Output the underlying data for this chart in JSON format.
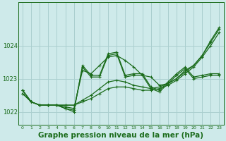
{
  "background_color": "#ceeaea",
  "grid_color": "#aacfcf",
  "line_color": "#1a6b1a",
  "xlabel": "Graphe pression niveau de la mer (hPa)",
  "xlabel_fontsize": 7.5,
  "xlim": [
    -0.5,
    23.5
  ],
  "ylim": [
    1021.6,
    1025.3
  ],
  "yticks": [
    1022,
    1023,
    1024
  ],
  "xticks": [
    0,
    1,
    2,
    3,
    4,
    5,
    6,
    7,
    8,
    9,
    10,
    11,
    12,
    13,
    14,
    15,
    16,
    17,
    18,
    19,
    20,
    21,
    22,
    23
  ],
  "series": [
    [
      1022.55,
      1022.3,
      1022.2,
      1022.2,
      1022.2,
      1022.2,
      1022.2,
      1022.3,
      1022.4,
      1022.55,
      1022.7,
      1022.75,
      1022.75,
      1022.7,
      1022.65,
      1022.65,
      1022.7,
      1022.8,
      1022.95,
      1023.15,
      1023.35,
      1023.65,
      1024.0,
      1024.4
    ],
    [
      1022.55,
      1022.3,
      1022.2,
      1022.2,
      1022.2,
      1022.2,
      1022.2,
      1022.35,
      1022.5,
      1022.7,
      1022.9,
      1022.95,
      1022.9,
      1022.8,
      1022.75,
      1022.7,
      1022.75,
      1022.85,
      1023.0,
      1023.2,
      1023.4,
      1023.7,
      1024.1,
      1024.5
    ],
    [
      1022.65,
      1022.3,
      1022.2,
      1022.2,
      1022.2,
      1022.15,
      1022.1,
      1023.25,
      1023.15,
      1023.4,
      1023.65,
      1023.7,
      1023.55,
      1023.35,
      1023.1,
      1023.05,
      1022.8,
      1022.85,
      1023.0,
      1023.25,
      1023.4,
      1023.7,
      1024.15,
      1024.55
    ],
    [
      1022.65,
      1022.3,
      1022.2,
      1022.2,
      1022.2,
      1022.1,
      1022.05,
      1023.35,
      1023.05,
      1023.05,
      1023.7,
      1023.75,
      1023.05,
      1023.1,
      1023.1,
      1022.7,
      1022.6,
      1022.85,
      1023.1,
      1023.3,
      1023.0,
      1023.05,
      1023.1,
      1023.1
    ],
    [
      1022.65,
      1022.3,
      1022.2,
      1022.2,
      1022.2,
      1022.1,
      1022.0,
      1023.4,
      1023.1,
      1023.1,
      1023.75,
      1023.8,
      1023.1,
      1023.15,
      1023.15,
      1022.75,
      1022.65,
      1022.9,
      1023.15,
      1023.35,
      1023.05,
      1023.1,
      1023.15,
      1023.15
    ]
  ]
}
